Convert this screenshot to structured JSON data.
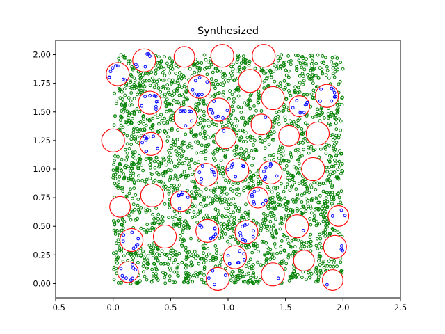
{
  "chart_data": {
    "type": "scatter",
    "title": "Synthesized",
    "xlabel": "",
    "ylabel": "",
    "xlim": [
      -0.5,
      2.5
    ],
    "ylim": [
      -0.125,
      2.125
    ],
    "x_ticks": [
      -0.5,
      0.0,
      0.5,
      1.0,
      1.5,
      2.0,
      2.5
    ],
    "x_tick_labels": [
      "−0.5",
      "0.0",
      "0.5",
      "1.0",
      "1.5",
      "2.0",
      "2.5"
    ],
    "y_ticks": [
      0.0,
      0.25,
      0.5,
      0.75,
      1.0,
      1.25,
      1.5,
      1.75,
      2.0
    ],
    "y_tick_labels": [
      "0.00",
      "0.25",
      "0.50",
      "0.75",
      "1.00",
      "1.25",
      "1.50",
      "1.75",
      "2.00"
    ],
    "grid": false,
    "legend": "none",
    "colors": {
      "circles": "#ff0000",
      "background_points": "#008000",
      "inner_points": "#0000ff"
    },
    "background_points_region": {
      "x": [
        0.0,
        2.0
      ],
      "y": [
        0.0,
        2.0
      ],
      "approx_count": 2200
    },
    "circles": [
      {
        "x": 0.04,
        "y": 1.83,
        "r": 0.1,
        "inner_points": 8
      },
      {
        "x": 0.27,
        "y": 1.95,
        "r": 0.1,
        "inner_points": 6
      },
      {
        "x": 0.62,
        "y": 1.98,
        "r": 0.09,
        "inner_points": 0
      },
      {
        "x": 0.95,
        "y": 1.99,
        "r": 0.1,
        "inner_points": 0
      },
      {
        "x": 1.31,
        "y": 1.99,
        "r": 0.1,
        "inner_points": 0
      },
      {
        "x": 0.75,
        "y": 1.72,
        "r": 0.1,
        "inner_points": 8
      },
      {
        "x": 1.19,
        "y": 1.77,
        "r": 0.1,
        "inner_points": 0
      },
      {
        "x": 1.86,
        "y": 1.64,
        "r": 0.1,
        "inner_points": 9
      },
      {
        "x": 0.32,
        "y": 1.58,
        "r": 0.1,
        "inner_points": 9
      },
      {
        "x": 1.39,
        "y": 1.62,
        "r": 0.1,
        "inner_points": 0
      },
      {
        "x": 0.92,
        "y": 1.52,
        "r": 0.1,
        "inner_points": 8
      },
      {
        "x": 1.62,
        "y": 1.55,
        "r": 0.09,
        "inner_points": 8
      },
      {
        "x": 0.63,
        "y": 1.45,
        "r": 0.1,
        "inner_points": 8
      },
      {
        "x": 1.29,
        "y": 1.39,
        "r": 0.09,
        "inner_points": 1
      },
      {
        "x": 0.0,
        "y": 1.25,
        "r": 0.1,
        "inner_points": 0
      },
      {
        "x": 0.33,
        "y": 1.22,
        "r": 0.1,
        "inner_points": 9
      },
      {
        "x": 0.98,
        "y": 1.27,
        "r": 0.09,
        "inner_points": 1
      },
      {
        "x": 1.53,
        "y": 1.29,
        "r": 0.09,
        "inner_points": 0
      },
      {
        "x": 1.78,
        "y": 1.31,
        "r": 0.1,
        "inner_points": 0
      },
      {
        "x": 0.81,
        "y": 0.95,
        "r": 0.1,
        "inner_points": 8
      },
      {
        "x": 1.08,
        "y": 0.99,
        "r": 0.1,
        "inner_points": 8
      },
      {
        "x": 1.37,
        "y": 0.97,
        "r": 0.1,
        "inner_points": 9
      },
      {
        "x": 1.74,
        "y": 1.0,
        "r": 0.1,
        "inner_points": 0
      },
      {
        "x": 0.34,
        "y": 0.77,
        "r": 0.1,
        "inner_points": 0
      },
      {
        "x": 0.59,
        "y": 0.72,
        "r": 0.09,
        "inner_points": 7
      },
      {
        "x": 1.26,
        "y": 0.75,
        "r": 0.09,
        "inner_points": 8
      },
      {
        "x": 0.06,
        "y": 0.67,
        "r": 0.09,
        "inner_points": 0
      },
      {
        "x": 1.96,
        "y": 0.59,
        "r": 0.09,
        "inner_points": 3
      },
      {
        "x": 0.82,
        "y": 0.46,
        "r": 0.1,
        "inner_points": 8
      },
      {
        "x": 1.16,
        "y": 0.45,
        "r": 0.1,
        "inner_points": 9
      },
      {
        "x": 1.6,
        "y": 0.5,
        "r": 0.1,
        "inner_points": 1
      },
      {
        "x": 0.16,
        "y": 0.38,
        "r": 0.1,
        "inner_points": 8
      },
      {
        "x": 0.45,
        "y": 0.41,
        "r": 0.1,
        "inner_points": 0
      },
      {
        "x": 1.93,
        "y": 0.32,
        "r": 0.1,
        "inner_points": 3
      },
      {
        "x": 1.06,
        "y": 0.23,
        "r": 0.1,
        "inner_points": 8
      },
      {
        "x": 1.66,
        "y": 0.2,
        "r": 0.09,
        "inner_points": 0
      },
      {
        "x": 0.13,
        "y": 0.1,
        "r": 0.09,
        "inner_points": 9
      },
      {
        "x": 0.91,
        "y": 0.04,
        "r": 0.1,
        "inner_points": 4
      },
      {
        "x": 1.39,
        "y": 0.08,
        "r": 0.1,
        "inner_points": 1
      },
      {
        "x": 1.91,
        "y": 0.03,
        "r": 0.09,
        "inner_points": 1
      }
    ]
  }
}
